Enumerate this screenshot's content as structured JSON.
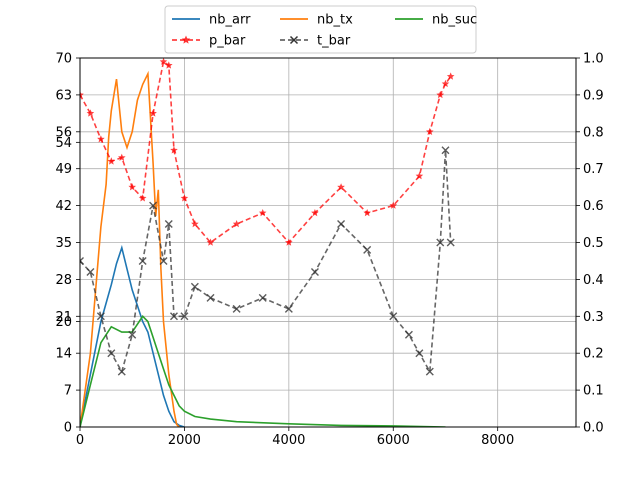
{
  "chart_data": {
    "type": "line",
    "title": "",
    "xlabel": "",
    "ylabel": "",
    "xlim": [
      0,
      9500
    ],
    "ylim_left": [
      0,
      70
    ],
    "ylim_right": [
      0,
      1.0
    ],
    "x_ticks": [
      0,
      2000,
      4000,
      6000,
      8000
    ],
    "y_ticks_left": [
      0,
      7,
      14,
      20,
      21,
      28,
      35,
      42,
      49,
      54,
      56,
      63,
      70
    ],
    "y_ticks_right": [
      0.0,
      0.1,
      0.2,
      0.3,
      0.4,
      0.5,
      0.6,
      0.7,
      0.8,
      0.9,
      1.0
    ],
    "grid": true,
    "legend_position": "top-center",
    "x_tick_labels": [
      "0",
      "2000",
      "4000",
      "6000",
      "8000"
    ],
    "y_tick_labels_left": [
      "0",
      "7",
      "14",
      "20",
      "21",
      "28",
      "35",
      "42",
      "49",
      "54",
      "56",
      "63",
      "70"
    ],
    "y_tick_labels_right": [
      "0.0",
      "0.1",
      "0.2",
      "0.3",
      "0.4",
      "0.5",
      "0.6",
      "0.7",
      "0.8",
      "0.9",
      "1.0"
    ],
    "series": [
      {
        "name": "nb_arr",
        "color": "#1f77b4",
        "axis": "left",
        "style": "solid",
        "x": [
          0,
          200,
          400,
          600,
          700,
          800,
          900,
          1000,
          1200,
          1300,
          1400,
          1500,
          1600,
          1700,
          1800,
          1900,
          2000
        ],
        "y": [
          0,
          10,
          20,
          27,
          31,
          34,
          30,
          26,
          20,
          18,
          14,
          10,
          6,
          3,
          1,
          0.3,
          0
        ]
      },
      {
        "name": "nb_tx",
        "color": "#ff7f0e",
        "axis": "left",
        "style": "solid",
        "x": [
          0,
          200,
          400,
          500,
          550,
          600,
          700,
          800,
          900,
          1000,
          1100,
          1200,
          1300,
          1400,
          1450,
          1500,
          1550,
          1600,
          1700,
          1800,
          1850,
          1900
        ],
        "y": [
          0,
          14,
          38,
          46,
          55,
          60,
          66,
          56,
          53,
          56,
          62,
          65,
          67,
          50,
          40,
          45,
          30,
          20,
          10,
          3,
          0.5,
          0
        ]
      },
      {
        "name": "nb_suc",
        "color": "#2ca02c",
        "axis": "left",
        "style": "solid",
        "x": [
          0,
          200,
          400,
          600,
          800,
          1000,
          1200,
          1300,
          1400,
          1500,
          1600,
          1700,
          1800,
          1900,
          2000,
          2200,
          2500,
          3000,
          4000,
          5000,
          6000,
          7000
        ],
        "y": [
          0,
          8,
          16,
          19,
          18,
          18,
          21,
          20,
          17,
          14,
          11,
          8,
          6,
          4,
          3,
          2,
          1.5,
          1,
          0.6,
          0.3,
          0.2,
          0
        ]
      },
      {
        "name": "p_bar",
        "color": "#ff0000",
        "axis": "right",
        "style": "dashed-star",
        "x": [
          0,
          200,
          400,
          600,
          800,
          1000,
          1200,
          1400,
          1600,
          1700,
          1800,
          2000,
          2200,
          2500,
          3000,
          3500,
          4000,
          4500,
          5000,
          5500,
          6000,
          6500,
          6700,
          6900,
          7000,
          7100
        ],
        "y": [
          0.9,
          0.85,
          0.78,
          0.72,
          0.73,
          0.65,
          0.62,
          0.85,
          0.99,
          0.98,
          0.75,
          0.62,
          0.55,
          0.5,
          0.55,
          0.58,
          0.5,
          0.58,
          0.65,
          0.58,
          0.6,
          0.68,
          0.8,
          0.9,
          0.93,
          0.95
        ]
      },
      {
        "name": "t_bar",
        "color": "#333333",
        "axis": "right",
        "style": "dashed-x",
        "x": [
          0,
          200,
          400,
          600,
          800,
          1000,
          1200,
          1400,
          1600,
          1700,
          1800,
          2000,
          2200,
          2500,
          3000,
          3500,
          4000,
          4500,
          5000,
          5500,
          6000,
          6300,
          6500,
          6700,
          6900,
          7000,
          7100
        ],
        "y": [
          0.45,
          0.42,
          0.3,
          0.2,
          0.15,
          0.25,
          0.45,
          0.6,
          0.45,
          0.55,
          0.3,
          0.3,
          0.38,
          0.35,
          0.32,
          0.35,
          0.32,
          0.42,
          0.55,
          0.48,
          0.3,
          0.25,
          0.2,
          0.15,
          0.5,
          0.75,
          0.5
        ]
      }
    ]
  }
}
